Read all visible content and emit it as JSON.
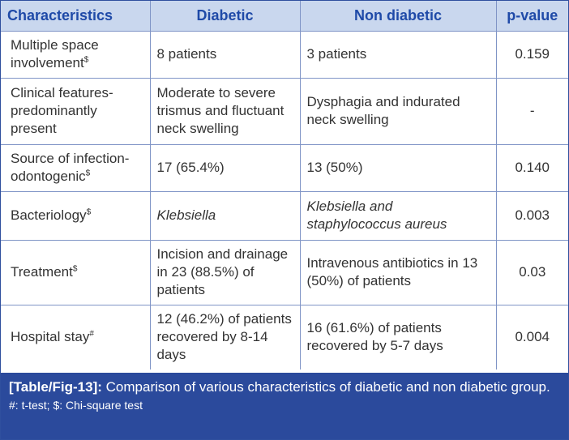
{
  "headers": {
    "characteristics": "Characteristics",
    "diabetic": "Diabetic",
    "non_diabetic": "Non diabetic",
    "p_value": "p-value"
  },
  "rows": [
    {
      "label": "Multiple space involvement",
      "mark": "$",
      "diabetic": "8 patients",
      "non_diabetic": "3 patients",
      "p": "0.159"
    },
    {
      "label": "Clinical features-predominantly present",
      "mark": "",
      "diabetic": "Moderate to severe trismus and fluctuant neck swelling",
      "non_diabetic": "Dysphagia and indurated neck swelling",
      "p": "-"
    },
    {
      "label": "Source of infection-odontogenic",
      "mark": "$",
      "diabetic": "17 (65.4%)",
      "non_diabetic": "13 (50%)",
      "p": "0.140"
    },
    {
      "label": "Bacteriology",
      "mark": "$",
      "diabetic": "Klebsiella",
      "non_diabetic": "Klebsiella and staphylococcus aureus",
      "p": "0.003"
    },
    {
      "label": "Treatment",
      "mark": "$",
      "diabetic": "Incision and drainage in 23 (88.5%) of patients",
      "non_diabetic": "Intravenous antibiotics in 13 (50%) of patients",
      "p": "0.03"
    },
    {
      "label": "Hospital stay",
      "mark": "#",
      "diabetic": "12 (46.2%) of patients recovered by 8-14 days",
      "non_diabetic": "16 (61.6%) of patients recovered by 5-7 days",
      "p": "0.004"
    }
  ],
  "caption": {
    "label": "[Table/Fig-13]:",
    "text": "Comparison of various characteristics of diabetic and non diabetic group.",
    "footnote": "#: t-test; $: Chi-square test"
  }
}
